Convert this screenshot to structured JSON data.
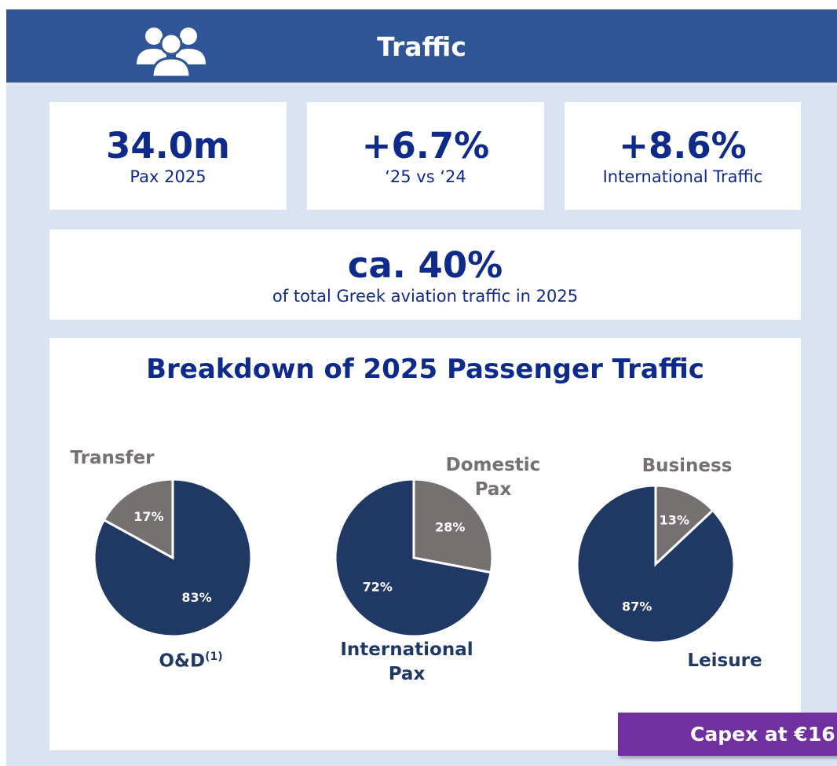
{
  "header": {
    "title": "Traffic"
  },
  "kpis": [
    {
      "value": "34.0m",
      "label": "Pax 2025"
    },
    {
      "value": "+6.7%",
      "label": "‘25 vs ‘24"
    },
    {
      "value": "+8.6%",
      "label": "International Traffic"
    }
  ],
  "share": {
    "value": "ca. 40%",
    "label": "of total Greek aviation traffic in 2025"
  },
  "breakdown": {
    "title": "Breakdown of 2025 Passenger Traffic"
  },
  "chart_data": [
    {
      "type": "pie",
      "categories": [
        "O&D",
        "Transfer"
      ],
      "category_mark": "(1)",
      "values": [
        83,
        17
      ],
      "value_labels": [
        "83%",
        "17%"
      ],
      "colors": [
        "#203864",
        "#767171"
      ]
    },
    {
      "type": "pie",
      "categories": [
        "Domestic Pax",
        "International Pax"
      ],
      "values": [
        28,
        72
      ],
      "value_labels": [
        "28%",
        "72%"
      ],
      "colors": [
        "#767171",
        "#203864"
      ]
    },
    {
      "type": "pie",
      "categories": [
        "Business",
        "Leisure"
      ],
      "values": [
        13,
        87
      ],
      "value_labels": [
        "13%",
        "87%"
      ],
      "colors": [
        "#767171",
        "#203864"
      ]
    }
  ],
  "overlay": {
    "text": "Capex at €16"
  }
}
